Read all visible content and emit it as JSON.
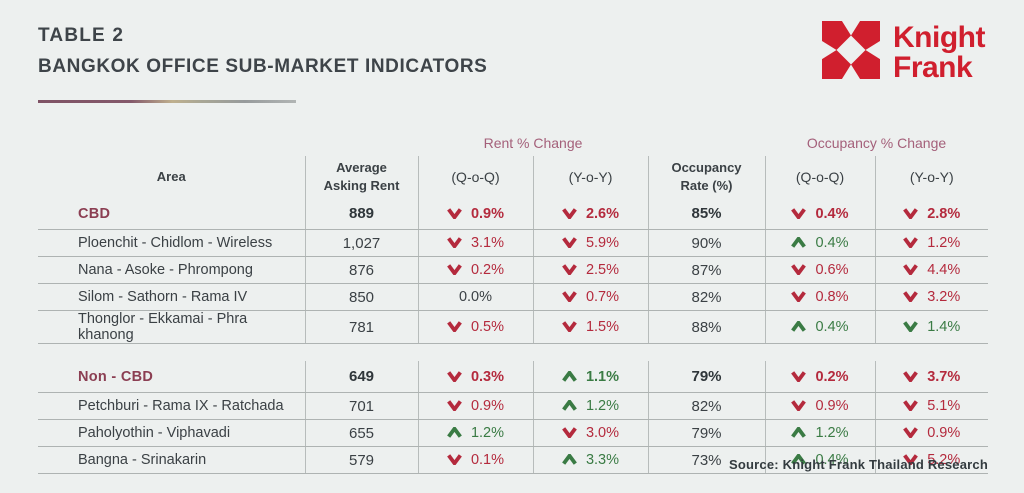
{
  "header": {
    "table_label": "TABLE 2",
    "title": "BANGKOK OFFICE SUB-MARKET INDICATORS",
    "logo": {
      "line1": "Knight",
      "line2": "Frank",
      "brand_color": "#d01f2e"
    }
  },
  "table": {
    "group_headers": {
      "rent": "Rent % Change",
      "occupancy": "Occupancy % Change"
    },
    "columns": {
      "area": "Area",
      "avg_rent_line1": "Average",
      "avg_rent_line2": "Asking Rent",
      "rent_qoq": "(Q-o-Q)",
      "rent_yoy": "(Y-o-Y)",
      "occ_rate_line1": "Occupancy",
      "occ_rate_line2": "Rate (%)",
      "occ_qoq": "(Q-o-Q)",
      "occ_yoy": "(Y-o-Y)"
    },
    "rows": [
      {
        "area": "CBD",
        "section": true,
        "avg_rent": "889",
        "rent_qoq": {
          "d": "down",
          "v": "0.9%",
          "c": "red"
        },
        "rent_yoy": {
          "d": "down",
          "v": "2.6%",
          "c": "red"
        },
        "occ_rate": "85%",
        "occ_qoq": {
          "d": "down",
          "v": "0.4%",
          "c": "red"
        },
        "occ_yoy": {
          "d": "down",
          "v": "2.8%",
          "c": "red"
        }
      },
      {
        "area": "Ploenchit - Chidlom - Wireless",
        "avg_rent": "1,027",
        "rent_qoq": {
          "d": "down",
          "v": "3.1%",
          "c": "red"
        },
        "rent_yoy": {
          "d": "down",
          "v": "5.9%",
          "c": "red"
        },
        "occ_rate": "90%",
        "occ_qoq": {
          "d": "up",
          "v": "0.4%",
          "c": "green"
        },
        "occ_yoy": {
          "d": "down",
          "v": "1.2%",
          "c": "red"
        }
      },
      {
        "area": "Nana - Asoke - Phrompong",
        "avg_rent": "876",
        "rent_qoq": {
          "d": "down",
          "v": "0.2%",
          "c": "red"
        },
        "rent_yoy": {
          "d": "down",
          "v": "2.5%",
          "c": "red"
        },
        "occ_rate": "87%",
        "occ_qoq": {
          "d": "down",
          "v": "0.6%",
          "c": "red"
        },
        "occ_yoy": {
          "d": "down",
          "v": "4.4%",
          "c": "red"
        }
      },
      {
        "area": "Silom - Sathorn - Rama IV",
        "avg_rent": "850",
        "rent_qoq": {
          "d": "none",
          "v": "0.0%",
          "c": "dark"
        },
        "rent_yoy": {
          "d": "down",
          "v": "0.7%",
          "c": "red"
        },
        "occ_rate": "82%",
        "occ_qoq": {
          "d": "down",
          "v": "0.8%",
          "c": "red"
        },
        "occ_yoy": {
          "d": "down",
          "v": "3.2%",
          "c": "red"
        }
      },
      {
        "area": "Thonglor - Ekkamai - Phra khanong",
        "avg_rent": "781",
        "rent_qoq": {
          "d": "down",
          "v": "0.5%",
          "c": "red"
        },
        "rent_yoy": {
          "d": "down",
          "v": "1.5%",
          "c": "red"
        },
        "occ_rate": "88%",
        "occ_qoq": {
          "d": "up",
          "v": "0.4%",
          "c": "green"
        },
        "occ_yoy": {
          "d": "down",
          "v": "1.4%",
          "c": "green"
        }
      },
      {
        "area": "Non - CBD",
        "section": true,
        "spacer_before": true,
        "avg_rent": "649",
        "rent_qoq": {
          "d": "down",
          "v": "0.3%",
          "c": "red"
        },
        "rent_yoy": {
          "d": "up",
          "v": "1.1%",
          "c": "green"
        },
        "occ_rate": "79%",
        "occ_qoq": {
          "d": "down",
          "v": "0.2%",
          "c": "red"
        },
        "occ_yoy": {
          "d": "down",
          "v": "3.7%",
          "c": "red"
        }
      },
      {
        "area": "Petchburi - Rama IX - Ratchada",
        "avg_rent": "701",
        "rent_qoq": {
          "d": "down",
          "v": "0.9%",
          "c": "red"
        },
        "rent_yoy": {
          "d": "up",
          "v": "1.2%",
          "c": "green"
        },
        "occ_rate": "82%",
        "occ_qoq": {
          "d": "down",
          "v": "0.9%",
          "c": "red"
        },
        "occ_yoy": {
          "d": "down",
          "v": "5.1%",
          "c": "red"
        }
      },
      {
        "area": "Paholyothin - Viphavadi",
        "avg_rent": "655",
        "rent_qoq": {
          "d": "up",
          "v": "1.2%",
          "c": "green"
        },
        "rent_yoy": {
          "d": "down",
          "v": "3.0%",
          "c": "red"
        },
        "occ_rate": "79%",
        "occ_qoq": {
          "d": "up",
          "v": "1.2%",
          "c": "green"
        },
        "occ_yoy": {
          "d": "down",
          "v": "0.9%",
          "c": "red"
        }
      },
      {
        "area": "Bangna - Srinakarin",
        "avg_rent": "579",
        "rent_qoq": {
          "d": "down",
          "v": "0.1%",
          "c": "red"
        },
        "rent_yoy": {
          "d": "up",
          "v": "3.3%",
          "c": "green"
        },
        "occ_rate": "73%",
        "occ_qoq": {
          "d": "up",
          "v": "0.4%",
          "c": "green"
        },
        "occ_yoy": {
          "d": "down",
          "v": "5.2%",
          "c": "red"
        }
      }
    ]
  },
  "footer": {
    "source": "Source: Knight Frank Thailand Research"
  },
  "colors": {
    "background": "#edf0ef",
    "red": "#b42a3d",
    "green": "#3a7b44",
    "maroon": "#8b3e52",
    "rose": "#a4607a",
    "brand": "#d01f2e"
  },
  "chart_data": {
    "type": "table",
    "title": "BANGKOK OFFICE SUB-MARKET INDICATORS",
    "columns": [
      "Area",
      "Average Asking Rent",
      "Rent % Change (Q-o-Q)",
      "Rent % Change (Y-o-Y)",
      "Occupancy Rate (%)",
      "Occupancy % Change (Q-o-Q)",
      "Occupancy % Change (Y-o-Y)"
    ],
    "rows": [
      [
        "CBD",
        889,
        -0.9,
        -2.6,
        85,
        -0.4,
        -2.8
      ],
      [
        "Ploenchit - Chidlom - Wireless",
        1027,
        -3.1,
        -5.9,
        90,
        0.4,
        -1.2
      ],
      [
        "Nana - Asoke - Phrompong",
        876,
        -0.2,
        -2.5,
        87,
        -0.6,
        -4.4
      ],
      [
        "Silom - Sathorn - Rama IV",
        850,
        0.0,
        -0.7,
        82,
        -0.8,
        -3.2
      ],
      [
        "Thonglor - Ekkamai - Phra khanong",
        781,
        -0.5,
        -1.5,
        88,
        0.4,
        -1.4
      ],
      [
        "Non - CBD",
        649,
        -0.3,
        1.1,
        79,
        -0.2,
        -3.7
      ],
      [
        "Petchburi - Rama IX - Ratchada",
        701,
        -0.9,
        1.2,
        82,
        -0.9,
        -5.1
      ],
      [
        "Paholyothin - Viphavadi",
        655,
        1.2,
        -3.0,
        79,
        1.2,
        -0.9
      ],
      [
        "Bangna - Srinakarin",
        579,
        -0.1,
        3.3,
        73,
        0.4,
        -5.2
      ]
    ]
  }
}
